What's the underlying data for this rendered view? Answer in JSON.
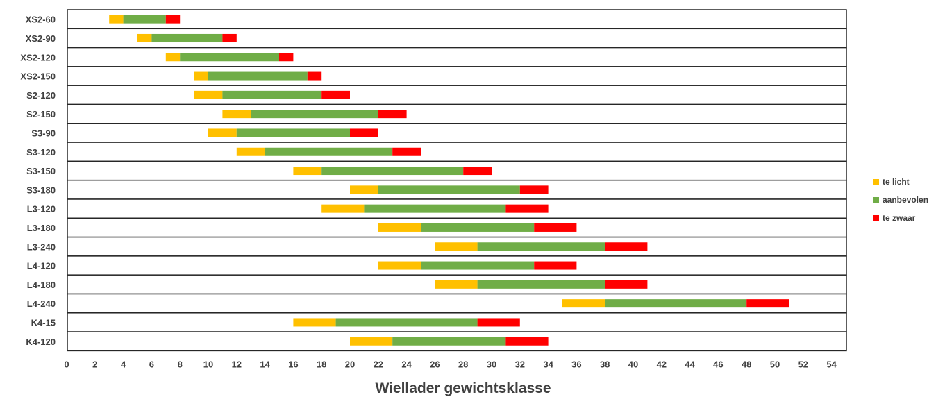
{
  "chart_data": {
    "type": "bar",
    "orientation": "horizontal",
    "stacked": true,
    "title": "",
    "xlabel": "Wiellader gewichtsklasse",
    "ylabel": "",
    "xlim": [
      0,
      54
    ],
    "x_ticks": [
      0,
      2,
      4,
      6,
      8,
      10,
      12,
      14,
      16,
      18,
      20,
      22,
      24,
      26,
      28,
      30,
      32,
      34,
      36,
      38,
      40,
      42,
      44,
      46,
      48,
      50,
      52,
      54
    ],
    "grid": "horizontal separators between categories",
    "legend_position": "right",
    "categories": [
      "XS2-60",
      "XS2-90",
      "XS2-120",
      "XS2-150",
      "S2-120",
      "S2-150",
      "S3-90",
      "S3-120",
      "S3-150",
      "S3-180",
      "L3-120",
      "L3-180",
      "L3-240",
      "L4-120",
      "L4-180",
      "L4-240",
      "K4-15",
      "K4-120"
    ],
    "series": [
      {
        "name": "te licht",
        "color": "#ffc000",
        "ranges": [
          [
            3,
            4
          ],
          [
            5,
            6
          ],
          [
            7,
            8
          ],
          [
            9,
            10
          ],
          [
            9,
            11
          ],
          [
            11,
            13
          ],
          [
            10,
            12
          ],
          [
            12,
            14
          ],
          [
            16,
            18
          ],
          [
            20,
            22
          ],
          [
            18,
            21
          ],
          [
            22,
            25
          ],
          [
            26,
            29
          ],
          [
            22,
            25
          ],
          [
            26,
            29
          ],
          [
            35,
            38
          ],
          [
            16,
            19
          ],
          [
            20,
            23
          ]
        ]
      },
      {
        "name": "aanbevolen",
        "color": "#70ad47",
        "ranges": [
          [
            4,
            7
          ],
          [
            6,
            11
          ],
          [
            8,
            15
          ],
          [
            10,
            17
          ],
          [
            11,
            18
          ],
          [
            13,
            22
          ],
          [
            12,
            20
          ],
          [
            14,
            23
          ],
          [
            18,
            28
          ],
          [
            22,
            32
          ],
          [
            21,
            31
          ],
          [
            25,
            33
          ],
          [
            29,
            38
          ],
          [
            25,
            33
          ],
          [
            29,
            38
          ],
          [
            38,
            48
          ],
          [
            19,
            29
          ],
          [
            23,
            31
          ]
        ]
      },
      {
        "name": "te zwaar",
        "color": "#ff0000",
        "ranges": [
          [
            7,
            8
          ],
          [
            11,
            12
          ],
          [
            15,
            16
          ],
          [
            17,
            18
          ],
          [
            18,
            20
          ],
          [
            22,
            24
          ],
          [
            20,
            22
          ],
          [
            23,
            25
          ],
          [
            28,
            30
          ],
          [
            32,
            34
          ],
          [
            31,
            34
          ],
          [
            33,
            36
          ],
          [
            38,
            41
          ],
          [
            33,
            36
          ],
          [
            38,
            41
          ],
          [
            48,
            51
          ],
          [
            29,
            32
          ],
          [
            31,
            34
          ]
        ]
      }
    ]
  }
}
